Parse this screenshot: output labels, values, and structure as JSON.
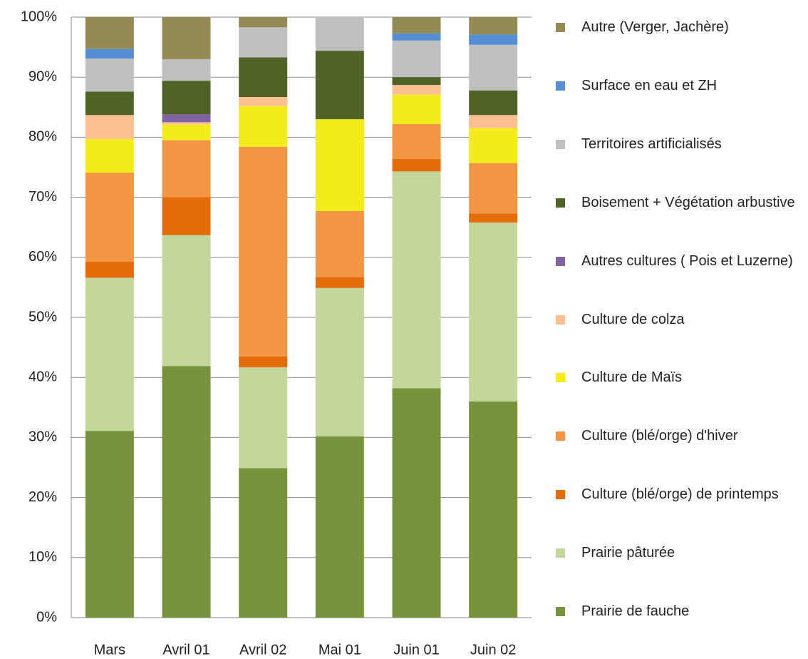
{
  "chart_data": {
    "type": "stacked_bar",
    "categories": [
      "Mars",
      "Avril 01",
      "Avril 02",
      "Mai 01",
      "Juin 01",
      "Juin 02"
    ],
    "series": [
      {
        "name": "Prairie de fauche",
        "color": "#77933c",
        "values": [
          31.1,
          41.9,
          24.9,
          30.2,
          38.2,
          36.0
        ]
      },
      {
        "name": "Prairie pâturée",
        "color": "#c3d69b",
        "values": [
          25.5,
          21.8,
          16.8,
          24.7,
          36.1,
          29.8
        ]
      },
      {
        "name": "Culture (blé/orge) de printemps",
        "color": "#e46c0a",
        "values": [
          2.7,
          6.3,
          1.8,
          1.8,
          2.1,
          1.5
        ]
      },
      {
        "name": "Culture (blé/orge) d'hiver",
        "color": "#f39644",
        "values": [
          14.8,
          9.5,
          34.9,
          11.0,
          5.8,
          8.4
        ]
      },
      {
        "name": "Culture de Maïs",
        "color": "#f2ec1c",
        "values": [
          5.6,
          2.6,
          6.8,
          15.3,
          4.9,
          5.8
        ]
      },
      {
        "name": "Culture de colza",
        "color": "#fac090",
        "values": [
          4.0,
          0.4,
          1.5,
          0,
          1.6,
          2.2
        ]
      },
      {
        "name": "Autres cultures ( Pois et Luzerne)",
        "color": "#8064a2",
        "values": [
          0,
          1.3,
          0,
          0,
          0,
          0
        ]
      },
      {
        "name": "Boisement + Végétation arbustive",
        "color": "#4f6228",
        "values": [
          3.9,
          5.6,
          6.6,
          11.4,
          1.3,
          4.1
        ]
      },
      {
        "name": "Territoires artificialisés",
        "color": "#bfbfbf",
        "values": [
          5.5,
          3.6,
          5.0,
          5.6,
          6.1,
          7.6
        ]
      },
      {
        "name": "Surface en eau et ZH",
        "color": "#558ed5",
        "values": [
          1.6,
          0,
          0,
          0,
          1.2,
          1.7
        ]
      },
      {
        "name": "Autre (Verger, Jachère)",
        "color": "#948a54",
        "values": [
          5.3,
          7.0,
          1.7,
          0,
          2.7,
          2.9
        ]
      }
    ],
    "ylim": [
      0,
      100
    ],
    "yticks": [
      {
        "value": 0,
        "label": "0%"
      },
      {
        "value": 10,
        "label": "10%"
      },
      {
        "value": 20,
        "label": "20%"
      },
      {
        "value": 30,
        "label": "30%"
      },
      {
        "value": 40,
        "label": "40%"
      },
      {
        "value": 50,
        "label": "50%"
      },
      {
        "value": 60,
        "label": "60%"
      },
      {
        "value": 70,
        "label": "70%"
      },
      {
        "value": 80,
        "label": "80%"
      },
      {
        "value": 90,
        "label": "90%"
      },
      {
        "value": 100,
        "label": "100%"
      }
    ],
    "grid": true
  }
}
